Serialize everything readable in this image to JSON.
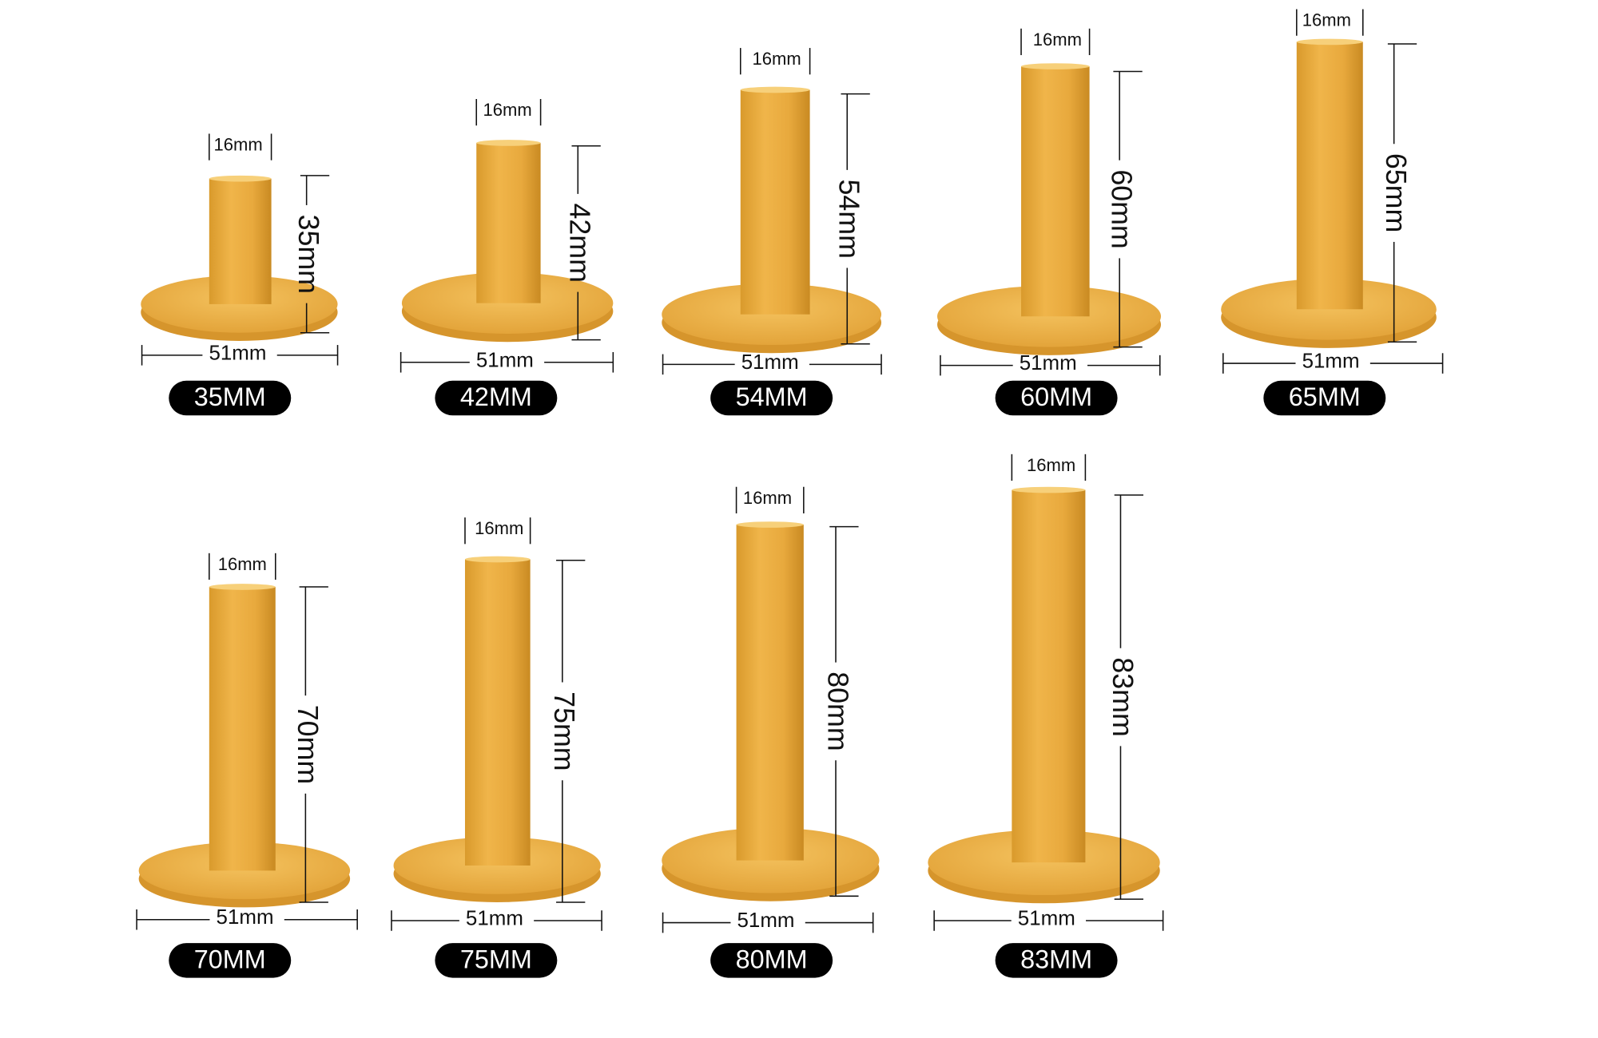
{
  "items": [
    {
      "label": "35MM",
      "top_width": "16mm",
      "height": "35mm",
      "base_width": "51mm"
    },
    {
      "label": "42MM",
      "top_width": "16mm",
      "height": "42mm",
      "base_width": "51mm"
    },
    {
      "label": "54MM",
      "top_width": "16mm",
      "height": "54mm",
      "base_width": "51mm"
    },
    {
      "label": "60MM",
      "top_width": "16mm",
      "height": "60mm",
      "base_width": "51mm"
    },
    {
      "label": "65MM",
      "top_width": "16mm",
      "height": "65mm",
      "base_width": "51mm"
    },
    {
      "label": "70MM",
      "top_width": "16mm",
      "height": "70mm",
      "base_width": "51mm"
    },
    {
      "label": "75MM",
      "top_width": "16mm",
      "height": "75mm",
      "base_width": "51mm"
    },
    {
      "label": "80MM",
      "top_width": "16mm",
      "height": "80mm",
      "base_width": "51mm"
    },
    {
      "label": "83MM",
      "top_width": "16mm",
      "height": "83mm",
      "base_width": "51mm"
    }
  ]
}
